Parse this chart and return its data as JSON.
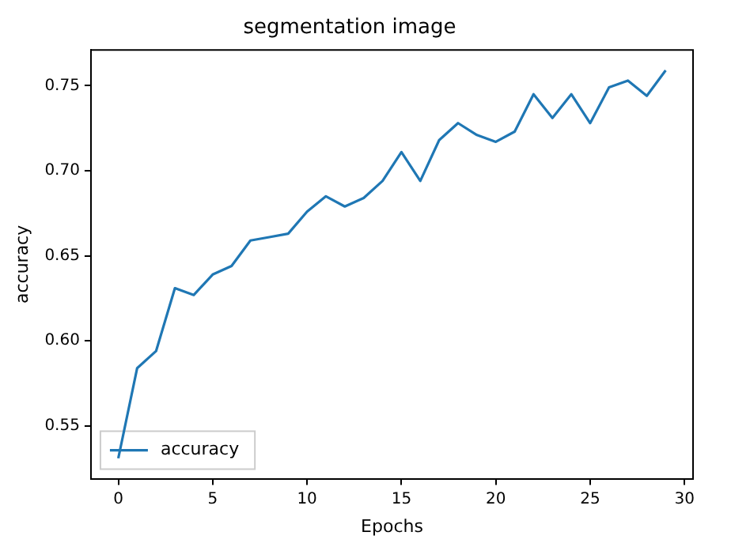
{
  "chart_data": {
    "type": "line",
    "title": "segmentation image",
    "xlabel": "Epochs",
    "ylabel": "accuracy",
    "x": [
      0,
      1,
      2,
      3,
      4,
      5,
      6,
      7,
      8,
      9,
      10,
      11,
      12,
      13,
      14,
      15,
      16,
      17,
      18,
      19,
      20,
      21,
      22,
      23,
      24,
      25,
      26,
      27,
      28,
      29
    ],
    "series": [
      {
        "name": "accuracy",
        "color": "#1f77b4",
        "values": [
          0.531,
          0.584,
          0.594,
          0.631,
          0.627,
          0.639,
          0.644,
          0.659,
          0.661,
          0.663,
          0.676,
          0.685,
          0.679,
          0.684,
          0.694,
          0.711,
          0.694,
          0.718,
          0.728,
          0.721,
          0.717,
          0.723,
          0.745,
          0.731,
          0.745,
          0.728,
          0.749,
          0.753,
          0.744,
          0.759
        ]
      }
    ],
    "xlim": [
      -1.45,
      30.45
    ],
    "xticks": [
      0,
      5,
      10,
      15,
      20,
      25,
      30
    ],
    "ylim": [
      0.519,
      0.771
    ],
    "yticks": [
      0.55,
      {
        "value": 0.6,
        "label": "0.60"
      },
      0.65,
      {
        "value": 0.7,
        "label": "0.70"
      },
      0.75
    ],
    "grid": false,
    "legend": "bottom left",
    "marker": "none",
    "line_style": "solid"
  }
}
